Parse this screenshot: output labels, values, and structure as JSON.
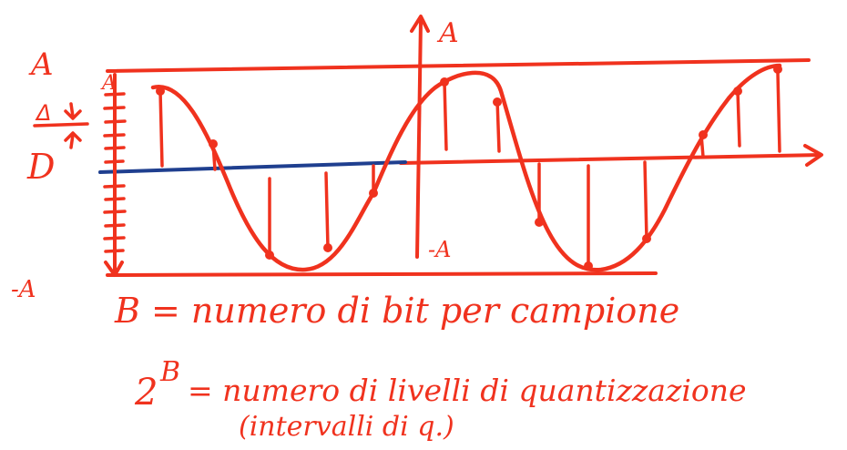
{
  "labels": {
    "a_left": "A",
    "a_axis": "A",
    "a_top_mark": "A",
    "delta_top": "Δ",
    "delta_bottom": "D",
    "minus_a_left": "-A",
    "minus_a_axis": "-A"
  },
  "notes": {
    "line1": "B = numero di bit per campione",
    "line2_base": "2",
    "line2_exp": "B",
    "line2_rest": "= numero di livelli di quantizzazione",
    "line3": "(intervalli di q.)"
  },
  "colors": {
    "ink": "#f0321e",
    "blue_ink": "#1f3f8f",
    "background": "#ffffff"
  }
}
